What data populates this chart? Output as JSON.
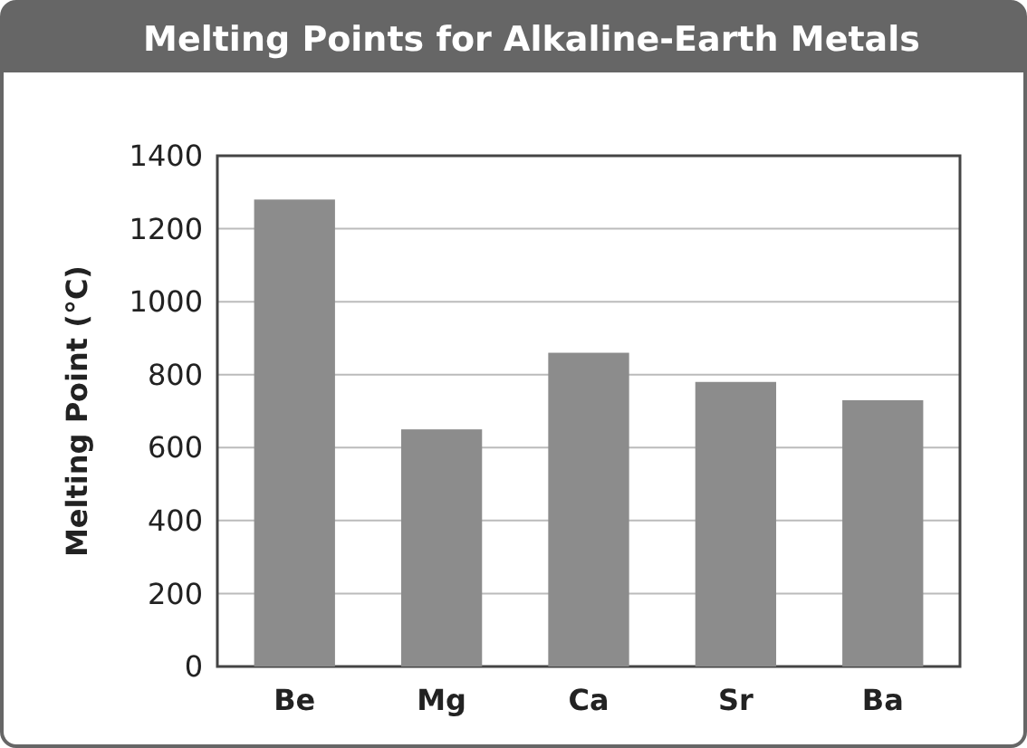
{
  "chart_data": {
    "type": "bar",
    "title": "Melting Points for Alkaline-Earth Metals",
    "ylabel": "Melting Point (°C)",
    "categories": [
      "Be",
      "Mg",
      "Ca",
      "Sr",
      "Ba"
    ],
    "values": [
      1280,
      650,
      860,
      780,
      730
    ],
    "color": "#8c8c8c",
    "ylim": [
      0,
      1400
    ],
    "yticks": [
      0,
      200,
      400,
      600,
      800,
      1000,
      1200,
      1400
    ],
    "grid": "y"
  }
}
